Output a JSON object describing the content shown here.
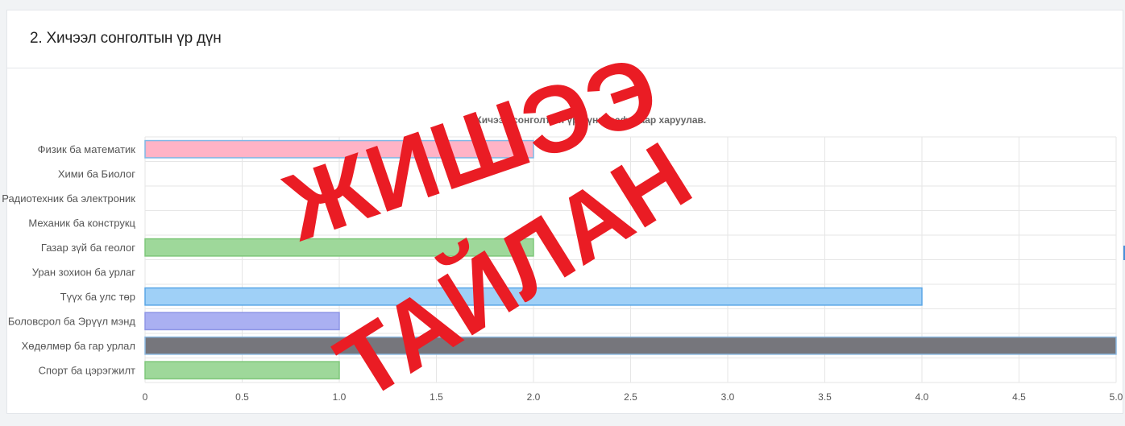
{
  "card": {
    "title": "2. Хичээл сонголтын үр дүн"
  },
  "watermark": {
    "line1": "ЖИШЭЭ",
    "line2": "ТАЙЛАН",
    "color": "#ea1c24"
  },
  "chart_data": {
    "type": "bar",
    "orientation": "horizontal",
    "title": "Хичээл сонголтын үр дүнг графикаар харуулав.",
    "categories": [
      "Физик  ба математик",
      "Хими ба Биолог",
      "Радиотехник ба электроник",
      "Механик ба конструкц",
      "Газар зүй ба геолог",
      "Уран зохион ба урлаг",
      "Түүх ба улс төр",
      "Боловсрол ба Эрүүл мэнд",
      "Хөдөлмөр ба гар урлал",
      "Спорт ба цэрэгжилт"
    ],
    "values": [
      2,
      0,
      0,
      0,
      2,
      0,
      4,
      1,
      5,
      1
    ],
    "bar_colors": [
      "#ffb3c6",
      "#ffffff",
      "#ffffff",
      "#ffffff",
      "#9ed89a",
      "#ffffff",
      "#9fd0f7",
      "#aab0f2",
      "#76767c",
      "#9ed89a"
    ],
    "bar_border_colors": [
      "#7fb8e6",
      "#ffffff",
      "#ffffff",
      "#ffffff",
      "#7fc77a",
      "#ffffff",
      "#5aa6e6",
      "#8e95e6",
      "#8ab7e0",
      "#7fc77a"
    ],
    "xlim": [
      0,
      5
    ],
    "xticks": [
      "0",
      "0.5",
      "1.0",
      "1.5",
      "2.0",
      "2.5",
      "3.0",
      "3.5",
      "4.0",
      "4.5",
      "5.0"
    ],
    "grid": true
  }
}
